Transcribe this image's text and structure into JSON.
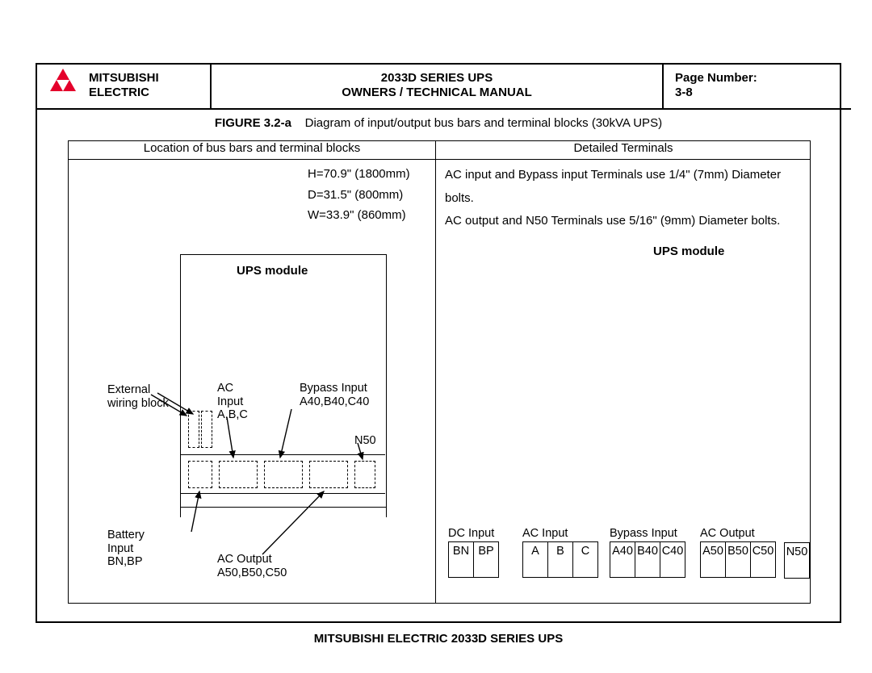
{
  "header": {
    "company_line1": "MITSUBISHI",
    "company_line2": "ELECTRIC",
    "title_line1": "2033D SERIES UPS",
    "title_line2": "OWNERS / TECHNICAL MANUAL",
    "page_label": "Page Number:",
    "page_num": "3-8",
    "logo_color": "#e4002b"
  },
  "caption": {
    "fig": "FIGURE 3.2-a",
    "text": "Diagram of input/output bus bars and terminal blocks (30kVA UPS)"
  },
  "frame": {
    "head_left": "Location of bus bars and terminal blocks",
    "head_right": "Detailed Terminals"
  },
  "dimensions": {
    "h": "H=70.9\" (1800mm)",
    "d": "D=31.5\" (800mm)",
    "w": "W=33.9\" (860mm)"
  },
  "notes": {
    "line1": "AC input and Bypass input Terminals use 1/4\"  (7mm) Diameter bolts.",
    "line2": "AC output and N50 Terminals use 5/16\"  (9mm) Diameter bolts."
  },
  "ups_label": "UPS module",
  "labels": {
    "ext1": "External",
    "ext2": "wiring block",
    "ac1": "AC",
    "ac2": "Input",
    "ac3": "A,B,C",
    "byp1": "Bypass Input",
    "byp2": "A40,B40,C40",
    "n50": "N50",
    "bat1": "Battery",
    "bat2": "Input",
    "bat3": "BN,BP",
    "out1": "AC Output",
    "out2": "A50,B50,C50"
  },
  "terminals": {
    "dc": {
      "title": "DC Input",
      "cells": [
        "BN",
        "BP"
      ]
    },
    "ac": {
      "title": "AC Input",
      "cells": [
        "A",
        "B",
        "C"
      ]
    },
    "byp": {
      "title": "Bypass Input",
      "cells": [
        "A40",
        "B40",
        "C40"
      ]
    },
    "out": {
      "title": "AC Output",
      "cells": [
        "A50",
        "B50",
        "C50"
      ]
    },
    "n50": {
      "title": "",
      "cells": [
        "N50"
      ]
    }
  },
  "footer": "MITSUBISHI ELECTRIC 2033D SERIES UPS"
}
